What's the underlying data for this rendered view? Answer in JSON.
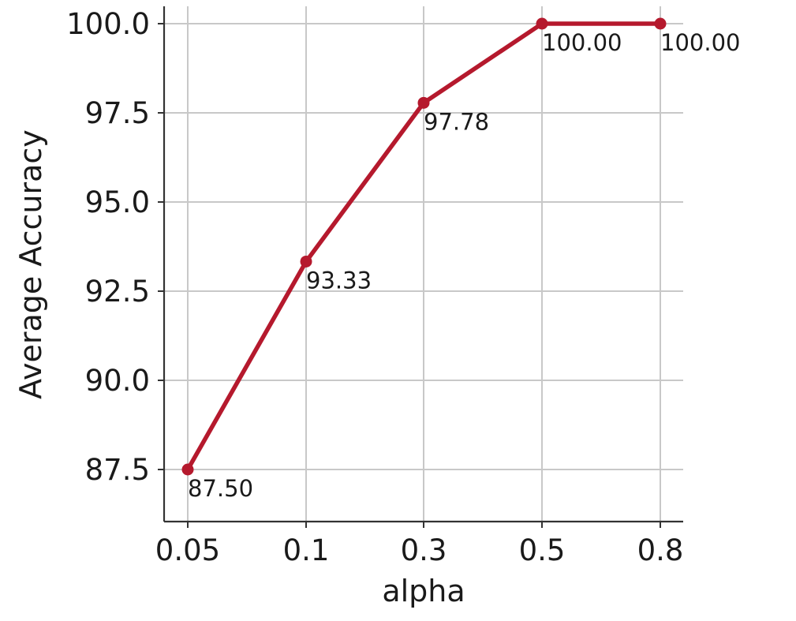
{
  "chart_data": {
    "type": "line",
    "title": "",
    "xlabel": "alpha",
    "ylabel": "Average Accuracy",
    "categories": [
      "0.05",
      "0.1",
      "0.3",
      "0.5",
      "0.8"
    ],
    "series": [
      {
        "name": "Average Accuracy",
        "values": [
          87.5,
          93.33,
          97.78,
          100.0,
          100.0
        ],
        "labels": [
          "87.50",
          "93.33",
          "97.78",
          "100.00",
          "100.00"
        ],
        "color": "#b5192d"
      }
    ],
    "yticks": [
      87.5,
      90.0,
      92.5,
      95.0,
      97.5,
      100.0
    ],
    "ytick_labels": [
      "87.5",
      "90.0",
      "92.5",
      "95.0",
      "97.5",
      "100.0"
    ],
    "ylim": [
      86.0,
      100.5
    ],
    "grid": true,
    "legend": "none"
  }
}
